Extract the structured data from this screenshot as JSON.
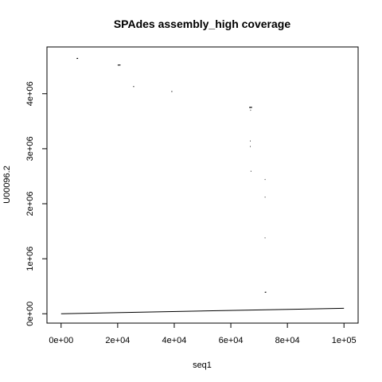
{
  "chart_data": {
    "type": "scatter",
    "title": "SPAdes assembly_high coverage",
    "xlabel": "seq1",
    "ylabel": "U00096.2",
    "xlim": [
      -5000,
      105000
    ],
    "ylim": [
      -170000,
      4850000
    ],
    "x_ticks": [
      {
        "value": 0,
        "label": "0e+00"
      },
      {
        "value": 20000,
        "label": "2e+04"
      },
      {
        "value": 40000,
        "label": "4e+04"
      },
      {
        "value": 60000,
        "label": "6e+04"
      },
      {
        "value": 80000,
        "label": "8e+04"
      },
      {
        "value": 100000,
        "label": "1e+05"
      }
    ],
    "y_ticks": [
      {
        "value": 0,
        "label": "0e+00"
      },
      {
        "value": 1000000,
        "label": "1e+06"
      },
      {
        "value": 2000000,
        "label": "2e+06"
      },
      {
        "value": 3000000,
        "label": "3e+06"
      },
      {
        "value": 4000000,
        "label": "4e+06"
      }
    ],
    "grid": false,
    "series": [
      {
        "type": "line",
        "color": "#000000",
        "points": [
          [
            0,
            0
          ],
          [
            100000,
            100000
          ]
        ]
      },
      {
        "type": "segments",
        "color": "#000000",
        "segments": [
          [
            [
              5500,
              4640000
            ],
            [
              6000,
              4642000
            ]
          ],
          [
            [
              20000,
              4520000
            ],
            [
              21000,
              4522000
            ]
          ],
          [
            [
              25500,
              4130000
            ],
            [
              25800,
              4131000
            ]
          ],
          [
            [
              39000,
              4040000
            ],
            [
              39300,
              4041000
            ]
          ],
          [
            [
              66500,
              3750000
            ],
            [
              67500,
              3752000
            ]
          ],
          [
            [
              66900,
              3700000
            ],
            [
              67100,
              3701000
            ]
          ],
          [
            [
              66800,
              3140000
            ],
            [
              67000,
              3141000
            ]
          ],
          [
            [
              66800,
              3040000
            ],
            [
              67000,
              3041000
            ]
          ],
          [
            [
              67000,
              2590000
            ],
            [
              67200,
              2591000
            ]
          ],
          [
            [
              72000,
              2440000
            ],
            [
              72200,
              2441000
            ]
          ],
          [
            [
              72000,
              2120000
            ],
            [
              72200,
              2121000
            ]
          ],
          [
            [
              72000,
              1380000
            ],
            [
              72200,
              1381000
            ]
          ],
          [
            [
              72000,
              390000
            ],
            [
              72500,
              392000
            ]
          ]
        ]
      }
    ]
  }
}
